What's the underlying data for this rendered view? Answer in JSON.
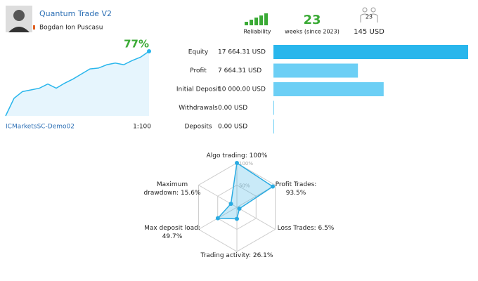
{
  "header": {
    "title": "Quantum Trade V2",
    "author": "Bogdan Ion Puscasu",
    "reliability_label": "Reliability",
    "weeks": 23,
    "weeks_label": "weeks (since 2023)",
    "subscribers": 23,
    "price": "145 USD"
  },
  "account": {
    "server": "ICMarketsSC-Demo02",
    "leverage": "1:100"
  },
  "chart_data": [
    {
      "type": "line",
      "values": [
        0,
        21,
        29,
        31,
        33,
        38,
        33,
        39,
        44,
        50,
        56,
        57,
        61,
        63,
        61,
        66,
        70,
        77
      ],
      "end_label": "77%",
      "color": "#29b6ec"
    },
    {
      "type": "bar",
      "categories": [
        "Equity",
        "Profit",
        "Initial Deposit",
        "Withdrawals",
        "Deposits"
      ],
      "values": [
        17664.31,
        7664.31,
        10000,
        0,
        0
      ],
      "value_labels": [
        "17 664.31 USD",
        "7 664.31 USD",
        "10 000.00 USD",
        "0.00 USD",
        "0.00 USD"
      ],
      "colors": [
        "#29b6ec",
        "#6ccff5",
        "#6ccff5",
        "#6ccff5",
        "#6ccff5"
      ]
    },
    {
      "type": "radar",
      "categories": [
        "Algo trading:",
        "Profit Trades:",
        "Loss Trades:",
        "Trading activity:",
        "Max deposit load:",
        "Maximum drawdown:"
      ],
      "values": [
        100,
        93.5,
        6.5,
        26.1,
        49.7,
        15.6
      ],
      "value_labels": [
        "100%",
        "93.5%",
        "6.5%",
        "26.1%",
        "49.7%",
        "15.6%"
      ],
      "rticks": [
        {
          "value": 50,
          "label": "50%"
        },
        {
          "value": 100,
          "label": "100%"
        }
      ],
      "color": "#29abe2"
    }
  ]
}
